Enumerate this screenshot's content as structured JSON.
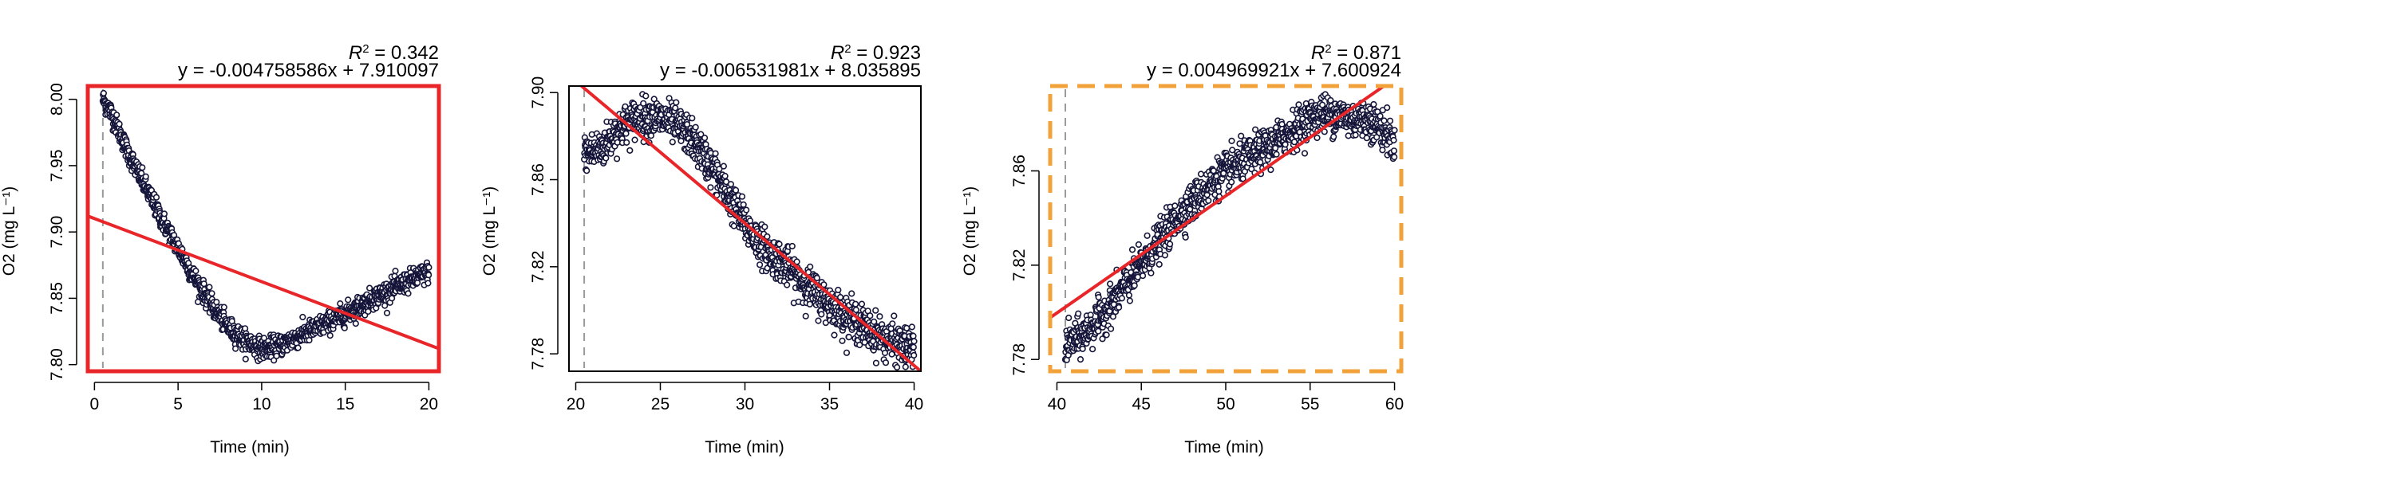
{
  "chart_data": [
    {
      "type": "scatter",
      "xlabel": "Time (min)",
      "ylabel": "O2 (mg L⁻¹)",
      "r2_label": "R",
      "r2_value": " = 0.342",
      "equation": "y = -0.004758586x + 7.910097",
      "xlim": [
        -0.4,
        20.6
      ],
      "ylim": [
        7.795,
        8.01
      ],
      "xticks": [
        0,
        5,
        10,
        15,
        20
      ],
      "xtick_labels": [
        "0",
        "5",
        "10",
        "15",
        "20"
      ],
      "yticks": [
        7.8,
        7.85,
        7.9,
        7.95,
        8.0
      ],
      "ytick_labels": [
        "7.80",
        "7.85",
        "7.90",
        "7.95",
        "8.00"
      ],
      "fit": {
        "slope": -0.004758586,
        "intercept": 7.910097
      },
      "fit_x_per_min": 20,
      "vline_x": 0.5,
      "frame": "red",
      "data_shape": [
        [
          0.5,
          8.0
        ],
        [
          1.0,
          7.99
        ],
        [
          2.0,
          7.96
        ],
        [
          3.0,
          7.935
        ],
        [
          4.0,
          7.91
        ],
        [
          5.0,
          7.888
        ],
        [
          6.0,
          7.865
        ],
        [
          7.0,
          7.845
        ],
        [
          8.0,
          7.828
        ],
        [
          9.0,
          7.818
        ],
        [
          10.0,
          7.812
        ],
        [
          11.0,
          7.814
        ],
        [
          12.0,
          7.82
        ],
        [
          13.0,
          7.826
        ],
        [
          14.0,
          7.832
        ],
        [
          15.0,
          7.838
        ],
        [
          16.0,
          7.845
        ],
        [
          17.0,
          7.852
        ],
        [
          18.0,
          7.858
        ],
        [
          19.0,
          7.864
        ],
        [
          20.0,
          7.87
        ]
      ],
      "noise": 0.004
    },
    {
      "type": "scatter",
      "xlabel": "Time (min)",
      "ylabel": "O2 (mg L⁻¹)",
      "r2_label": "R",
      "r2_value": " = 0.923",
      "equation": "y = -0.006531981x + 8.035895",
      "xlim": [
        19.6,
        40.4
      ],
      "ylim": [
        7.772,
        7.903
      ],
      "xticks": [
        20,
        25,
        30,
        35,
        40
      ],
      "xtick_labels": [
        "20",
        "25",
        "30",
        "35",
        "40"
      ],
      "yticks": [
        7.78,
        7.82,
        7.86,
        7.9
      ],
      "ytick_labels": [
        "7.78",
        "7.82",
        "7.86",
        "7.90"
      ],
      "fit": {
        "slope": -0.006531981,
        "intercept": 8.035895
      },
      "fit_x_per_min": 20,
      "vline_x": 20.5,
      "frame": "black",
      "data_shape": [
        [
          20.5,
          7.872
        ],
        [
          21.5,
          7.874
        ],
        [
          22.5,
          7.883
        ],
        [
          23.5,
          7.888
        ],
        [
          24.5,
          7.889
        ],
        [
          25.5,
          7.887
        ],
        [
          26.5,
          7.882
        ],
        [
          27.5,
          7.872
        ],
        [
          28.5,
          7.86
        ],
        [
          29.5,
          7.846
        ],
        [
          30.5,
          7.834
        ],
        [
          31.5,
          7.826
        ],
        [
          32.5,
          7.82
        ],
        [
          33.5,
          7.812
        ],
        [
          34.5,
          7.806
        ],
        [
          35.5,
          7.8
        ],
        [
          36.5,
          7.795
        ],
        [
          37.5,
          7.79
        ],
        [
          38.5,
          7.786
        ],
        [
          39.5,
          7.783
        ],
        [
          40.0,
          7.782
        ]
      ],
      "noise": 0.0045
    },
    {
      "type": "scatter",
      "xlabel": "Time (min)",
      "ylabel": "O2 (mg L⁻¹)",
      "r2_label": "R",
      "r2_value": " = 0.871",
      "equation": "y = 0.004969921x + 7.600924",
      "xlim": [
        39.6,
        60.4
      ],
      "ylim": [
        7.775,
        7.896
      ],
      "xticks": [
        40,
        45,
        50,
        55,
        60
      ],
      "xtick_labels": [
        "40",
        "45",
        "50",
        "55",
        "60"
      ],
      "yticks": [
        7.78,
        7.82,
        7.86
      ],
      "ytick_labels": [
        "7.78",
        "7.82",
        "7.86"
      ],
      "fit": {
        "slope": 0.004969921,
        "intercept": 7.600924
      },
      "fit_x_per_min": 20,
      "vline_x": 40.5,
      "frame": "orange-dashed",
      "data_shape": [
        [
          40.5,
          7.786
        ],
        [
          41.5,
          7.79
        ],
        [
          42.5,
          7.797
        ],
        [
          43.5,
          7.806
        ],
        [
          44.5,
          7.815
        ],
        [
          45.5,
          7.825
        ],
        [
          46.5,
          7.834
        ],
        [
          47.5,
          7.843
        ],
        [
          48.5,
          7.85
        ],
        [
          49.5,
          7.857
        ],
        [
          50.5,
          7.862
        ],
        [
          51.5,
          7.866
        ],
        [
          52.5,
          7.87
        ],
        [
          53.5,
          7.875
        ],
        [
          54.5,
          7.88
        ],
        [
          55.5,
          7.884
        ],
        [
          56.5,
          7.884
        ],
        [
          57.5,
          7.882
        ],
        [
          58.5,
          7.882
        ],
        [
          59.5,
          7.876
        ],
        [
          60.0,
          7.872
        ]
      ],
      "noise": 0.004
    }
  ]
}
